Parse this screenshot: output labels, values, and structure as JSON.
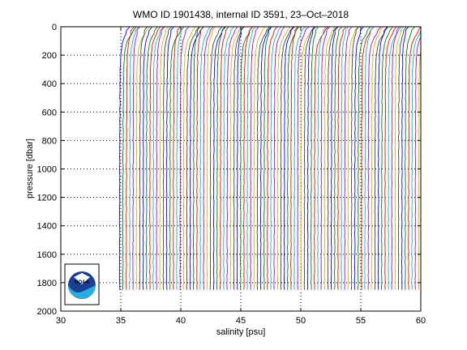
{
  "chart_data": {
    "type": "line",
    "title": "WMO ID 1901438, internal ID 3591, 23–Oct–2018",
    "xlabel": "salinity [psu]",
    "ylabel": "pressure [dbar]",
    "xlim": [
      30,
      60
    ],
    "ylim": [
      0,
      2000
    ],
    "y_reversed": true,
    "xticks": [
      30,
      35,
      40,
      45,
      50,
      55,
      60
    ],
    "yticks": [
      0,
      200,
      400,
      600,
      800,
      1000,
      1200,
      1400,
      1600,
      1800,
      2000
    ],
    "grid": "dotted",
    "series_colors": [
      "#0000ff",
      "#008000",
      "#ff0000",
      "#00bfbf",
      "#bf00bf",
      "#bfbf00",
      "#404040"
    ],
    "profiles": {
      "description": "offset salinity profiles, one per cycle, each shifted by a constant step",
      "count": 90,
      "first_deep_salinity": 34.9,
      "offset_step": 0.28,
      "max_pressure": 1850
    },
    "logo": {
      "name": "noaa-logo",
      "text": "NOAA"
    }
  }
}
